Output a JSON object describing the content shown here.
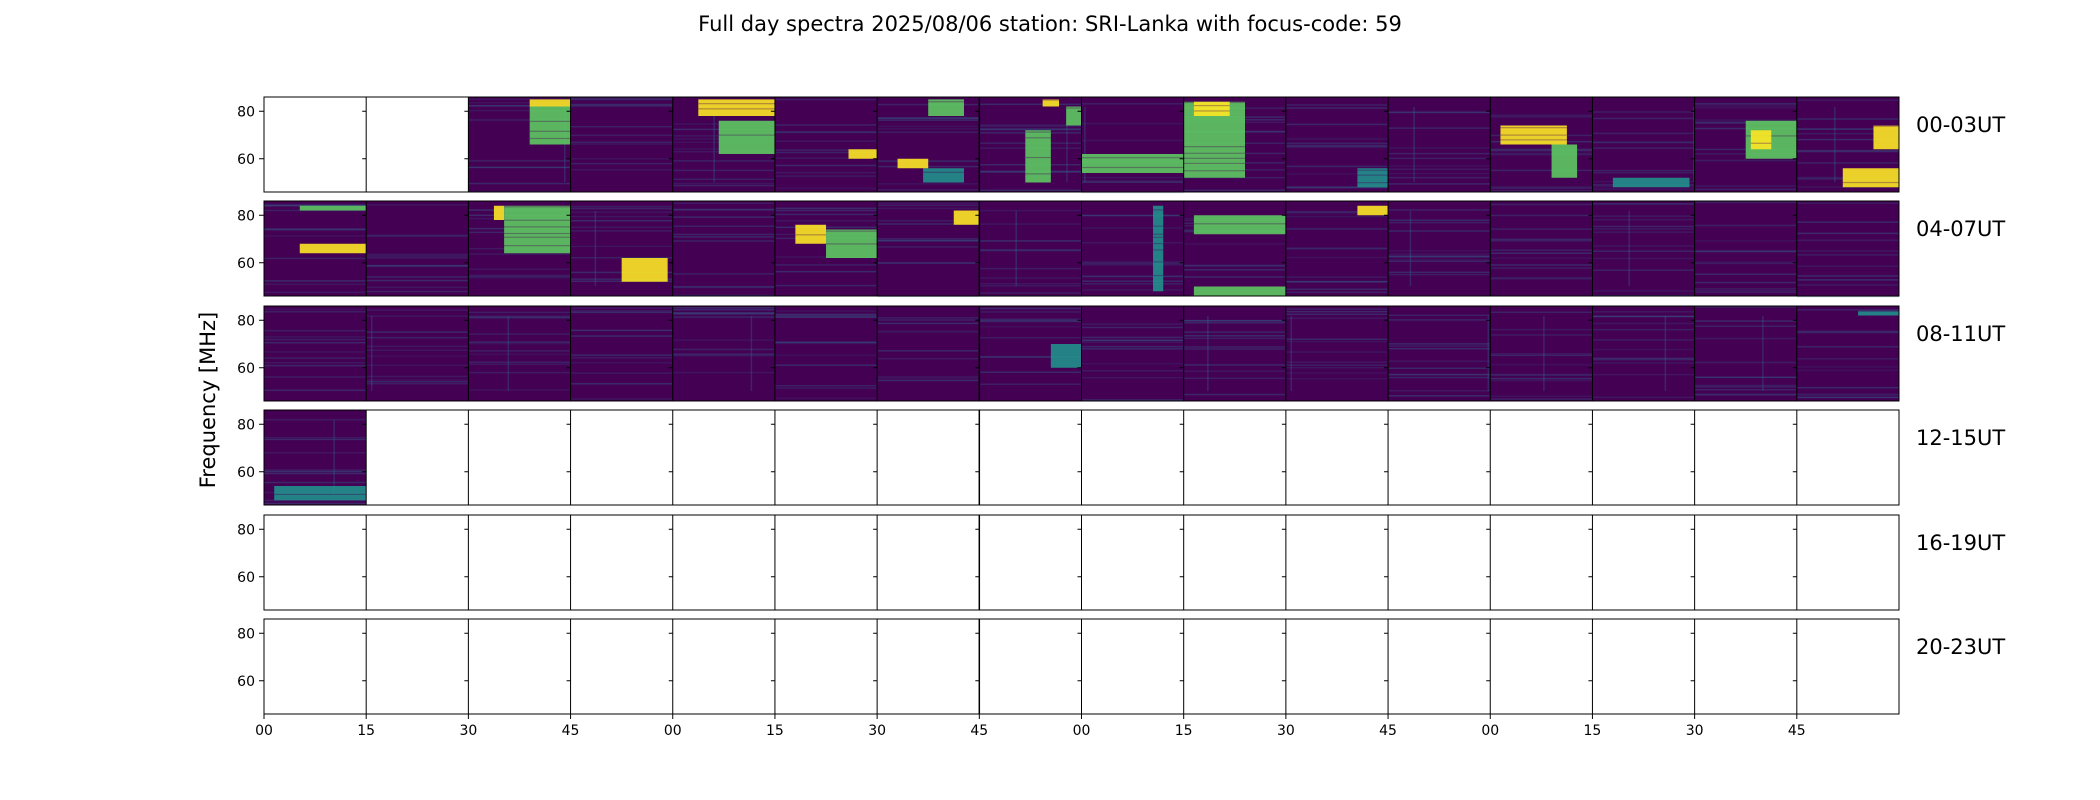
{
  "title": "Full day spectra 2025/08/06 station: SRI-Lanka with focus-code: 59",
  "chart_data": {
    "type": "heatmap",
    "title": "Full day spectra 2025/08/06 station: SRI-Lanka with focus-code: 59",
    "ylabel": "Frequency [MHz]",
    "xlabel": "",
    "ylim": [
      46,
      86
    ],
    "yticks": [
      60,
      80
    ],
    "xtick_labels": [
      "00",
      "15",
      "30",
      "45",
      "00",
      "15",
      "30",
      "45",
      "00",
      "15",
      "30",
      "45",
      "00",
      "15",
      "30",
      "45"
    ],
    "colormap": "viridis",
    "colors": {
      "background": "#440154",
      "mid": "#31688e",
      "cyan": "#21908d",
      "green": "#5ec962",
      "yellow": "#fde725"
    },
    "rows": [
      {
        "label": "00-03UT",
        "filled": [
          false,
          false,
          true,
          true,
          true,
          true,
          true,
          true,
          true,
          true,
          true,
          true,
          true,
          true,
          true,
          true
        ]
      },
      {
        "label": "04-07UT",
        "filled": [
          true,
          true,
          true,
          true,
          true,
          true,
          true,
          true,
          true,
          true,
          true,
          true,
          true,
          true,
          true,
          true
        ]
      },
      {
        "label": "08-11UT",
        "filled": [
          true,
          true,
          true,
          true,
          true,
          true,
          true,
          true,
          true,
          true,
          true,
          true,
          true,
          true,
          true,
          true
        ]
      },
      {
        "label": "12-15UT",
        "filled": [
          true,
          false,
          false,
          false,
          false,
          false,
          false,
          false,
          false,
          false,
          false,
          false,
          false,
          false,
          false,
          false
        ]
      },
      {
        "label": "16-19UT",
        "filled": [
          false,
          false,
          false,
          false,
          false,
          false,
          false,
          false,
          false,
          false,
          false,
          false,
          false,
          false,
          false,
          false
        ]
      },
      {
        "label": "20-23UT",
        "filled": [
          false,
          false,
          false,
          false,
          false,
          false,
          false,
          false,
          false,
          false,
          false,
          false,
          false,
          false,
          false,
          false
        ]
      }
    ],
    "highlights": [
      {
        "row": 0,
        "panel": 2,
        "f_min": 82,
        "f_max": 85,
        "t_from": 0.6,
        "t_to": 1.0,
        "level": "yellow"
      },
      {
        "row": 0,
        "panel": 2,
        "f_min": 66,
        "f_max": 82,
        "t_from": 0.6,
        "t_to": 1.0,
        "level": "green"
      },
      {
        "row": 0,
        "panel": 4,
        "f_min": 78,
        "f_max": 85,
        "t_from": 0.25,
        "t_to": 1.0,
        "level": "yellow"
      },
      {
        "row": 0,
        "panel": 4,
        "f_min": 62,
        "f_max": 76,
        "t_from": 0.45,
        "t_to": 1.0,
        "level": "green"
      },
      {
        "row": 0,
        "panel": 5,
        "f_min": 60,
        "f_max": 64,
        "t_from": 0.72,
        "t_to": 1.0,
        "level": "yellow"
      },
      {
        "row": 0,
        "panel": 6,
        "f_min": 50,
        "f_max": 56,
        "t_from": 0.45,
        "t_to": 0.85,
        "level": "cyan"
      },
      {
        "row": 0,
        "panel": 6,
        "f_min": 56,
        "f_max": 60,
        "t_from": 0.2,
        "t_to": 0.5,
        "level": "yellow"
      },
      {
        "row": 0,
        "panel": 6,
        "f_min": 78,
        "f_max": 85,
        "t_from": 0.5,
        "t_to": 0.85,
        "level": "green"
      },
      {
        "row": 0,
        "panel": 7,
        "f_min": 50,
        "f_max": 72,
        "t_from": 0.45,
        "t_to": 0.7,
        "level": "green"
      },
      {
        "row": 0,
        "panel": 7,
        "f_min": 74,
        "f_max": 82,
        "t_from": 0.85,
        "t_to": 1.0,
        "level": "green"
      },
      {
        "row": 0,
        "panel": 7,
        "f_min": 82,
        "f_max": 85,
        "t_from": 0.62,
        "t_to": 0.78,
        "level": "yellow"
      },
      {
        "row": 0,
        "panel": 8,
        "f_min": 54,
        "f_max": 62,
        "t_from": 0.0,
        "t_to": 1.0,
        "level": "green"
      },
      {
        "row": 0,
        "panel": 9,
        "f_min": 52,
        "f_max": 84,
        "t_from": 0.0,
        "t_to": 0.6,
        "level": "green"
      },
      {
        "row": 0,
        "panel": 9,
        "f_min": 78,
        "f_max": 84,
        "t_from": 0.1,
        "t_to": 0.45,
        "level": "yellow"
      },
      {
        "row": 0,
        "panel": 10,
        "f_min": 48,
        "f_max": 56,
        "t_from": 0.7,
        "t_to": 1.0,
        "level": "cyan"
      },
      {
        "row": 0,
        "panel": 12,
        "f_min": 66,
        "f_max": 74,
        "t_from": 0.1,
        "t_to": 0.75,
        "level": "yellow"
      },
      {
        "row": 0,
        "panel": 12,
        "f_min": 52,
        "f_max": 66,
        "t_from": 0.6,
        "t_to": 0.85,
        "level": "green"
      },
      {
        "row": 0,
        "panel": 13,
        "f_min": 48,
        "f_max": 52,
        "t_from": 0.2,
        "t_to": 0.95,
        "level": "cyan"
      },
      {
        "row": 0,
        "panel": 14,
        "f_min": 60,
        "f_max": 76,
        "t_from": 0.5,
        "t_to": 1.0,
        "level": "green"
      },
      {
        "row": 0,
        "panel": 14,
        "f_min": 64,
        "f_max": 72,
        "t_from": 0.55,
        "t_to": 0.75,
        "level": "yellow"
      },
      {
        "row": 0,
        "panel": 15,
        "f_min": 48,
        "f_max": 56,
        "t_from": 0.45,
        "t_to": 1.0,
        "level": "yellow"
      },
      {
        "row": 0,
        "panel": 15,
        "f_min": 64,
        "f_max": 74,
        "t_from": 0.75,
        "t_to": 1.0,
        "level": "yellow"
      },
      {
        "row": 1,
        "panel": 0,
        "f_min": 64,
        "f_max": 68,
        "t_from": 0.35,
        "t_to": 1.0,
        "level": "yellow"
      },
      {
        "row": 1,
        "panel": 0,
        "f_min": 82,
        "f_max": 84,
        "t_from": 0.35,
        "t_to": 1.0,
        "level": "green"
      },
      {
        "row": 1,
        "panel": 2,
        "f_min": 78,
        "f_max": 84,
        "t_from": 0.25,
        "t_to": 0.35,
        "level": "yellow"
      },
      {
        "row": 1,
        "panel": 2,
        "f_min": 64,
        "f_max": 84,
        "t_from": 0.35,
        "t_to": 1.0,
        "level": "green"
      },
      {
        "row": 1,
        "panel": 3,
        "f_min": 52,
        "f_max": 62,
        "t_from": 0.5,
        "t_to": 0.95,
        "level": "yellow"
      },
      {
        "row": 1,
        "panel": 5,
        "f_min": 68,
        "f_max": 76,
        "t_from": 0.2,
        "t_to": 0.5,
        "level": "yellow"
      },
      {
        "row": 1,
        "panel": 5,
        "f_min": 62,
        "f_max": 74,
        "t_from": 0.5,
        "t_to": 1.0,
        "level": "green"
      },
      {
        "row": 1,
        "panel": 6,
        "f_min": 76,
        "f_max": 82,
        "t_from": 0.75,
        "t_to": 1.0,
        "level": "yellow"
      },
      {
        "row": 1,
        "panel": 8,
        "f_min": 48,
        "f_max": 84,
        "t_from": 0.7,
        "t_to": 0.8,
        "level": "cyan"
      },
      {
        "row": 1,
        "panel": 9,
        "f_min": 46,
        "f_max": 50,
        "t_from": 0.1,
        "t_to": 1.0,
        "level": "green"
      },
      {
        "row": 1,
        "panel": 9,
        "f_min": 72,
        "f_max": 80,
        "t_from": 0.1,
        "t_to": 1.0,
        "level": "green"
      },
      {
        "row": 1,
        "panel": 10,
        "f_min": 80,
        "f_max": 84,
        "t_from": 0.7,
        "t_to": 1.0,
        "level": "yellow"
      },
      {
        "row": 2,
        "panel": 7,
        "f_min": 60,
        "f_max": 70,
        "t_from": 0.7,
        "t_to": 1.0,
        "level": "cyan"
      },
      {
        "row": 2,
        "panel": 15,
        "f_min": 82,
        "f_max": 84,
        "t_from": 0.6,
        "t_to": 1.0,
        "level": "cyan"
      },
      {
        "row": 3,
        "panel": 0,
        "f_min": 48,
        "f_max": 54,
        "t_from": 0.1,
        "t_to": 1.0,
        "level": "cyan"
      }
    ]
  }
}
